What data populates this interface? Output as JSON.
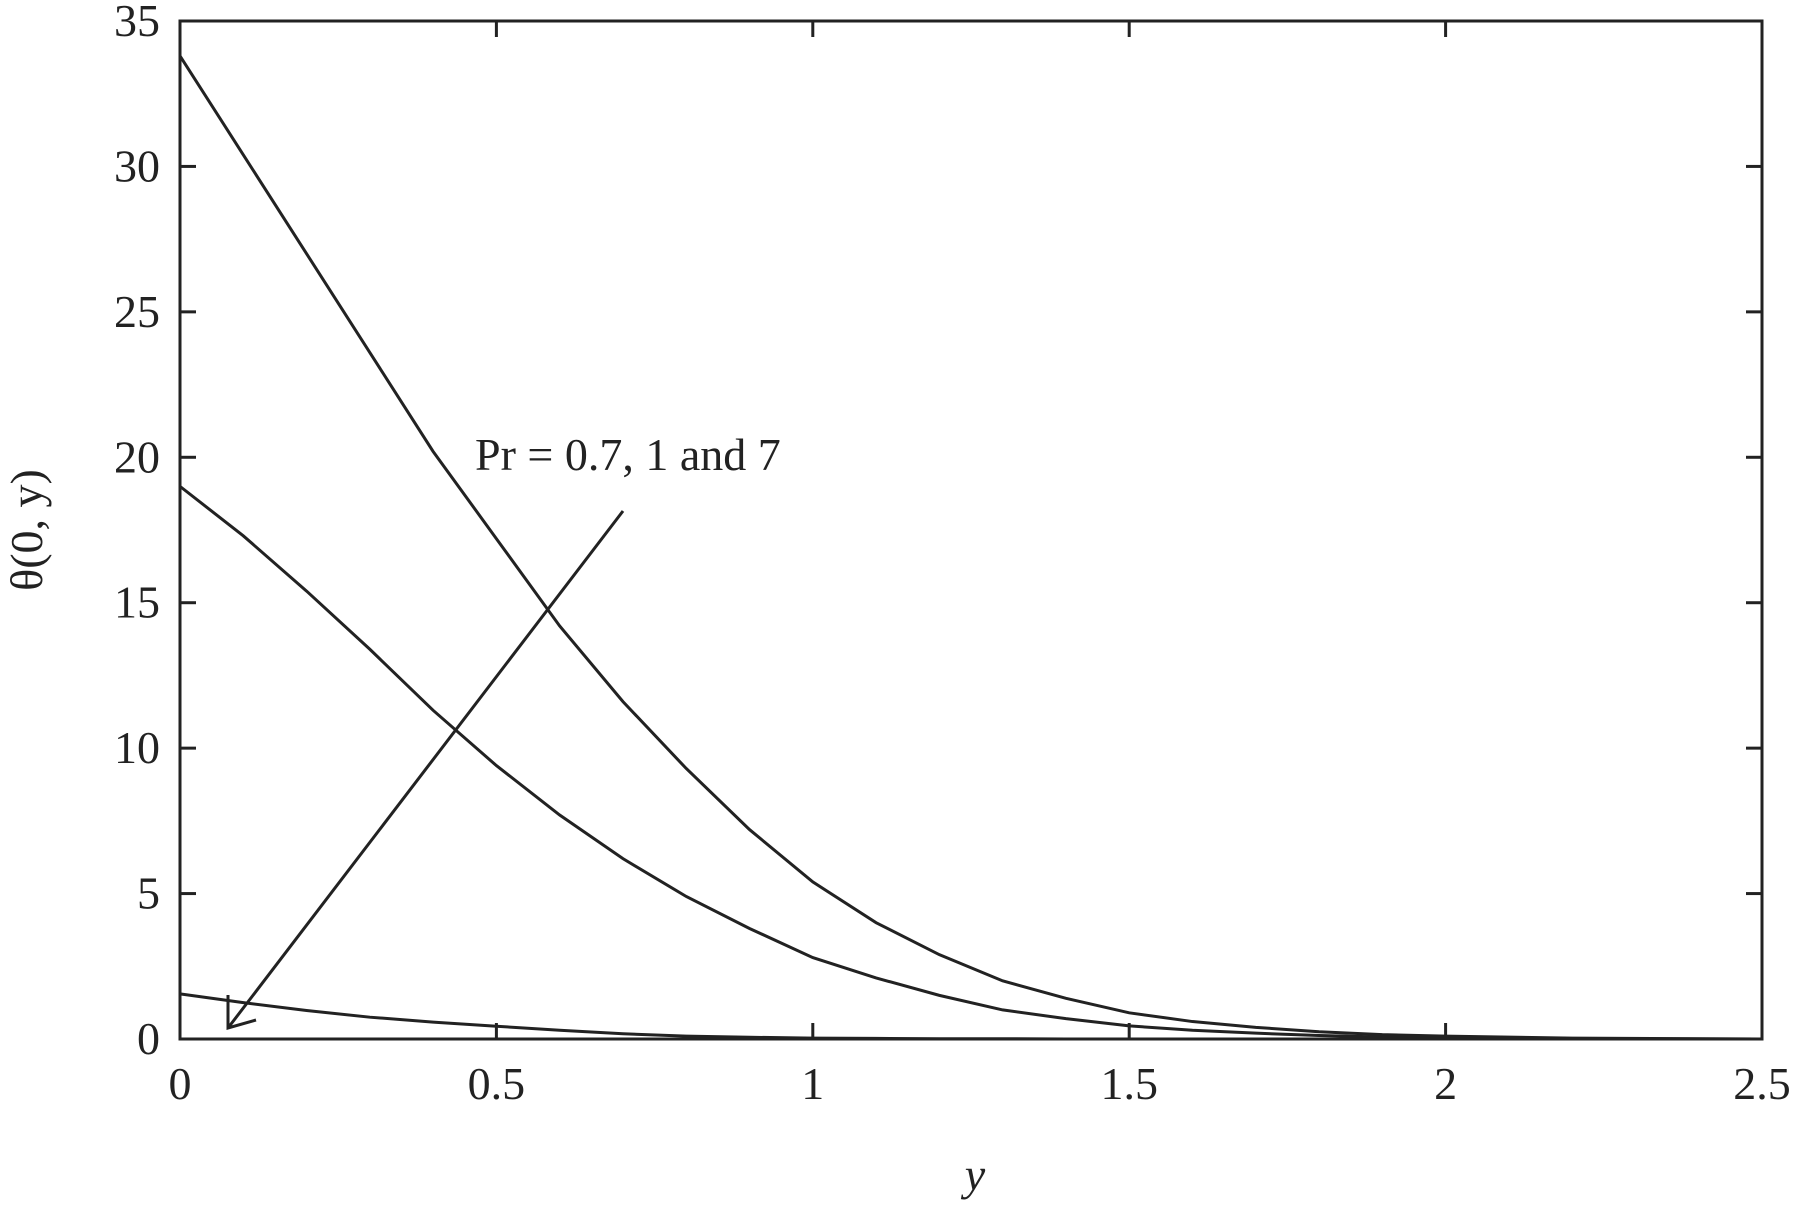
{
  "chart_data": {
    "type": "line",
    "xlabel": "y",
    "ylabel": "θ(0, y)",
    "annotation": "Pr = 0.7, 1 and 7",
    "x": [
      0,
      0.1,
      0.2,
      0.3,
      0.4,
      0.5,
      0.6,
      0.7,
      0.8,
      0.9,
      1.0,
      1.1,
      1.2,
      1.3,
      1.4,
      1.5,
      1.6,
      1.7,
      1.8,
      1.9,
      2.0,
      2.2,
      2.5
    ],
    "series": [
      {
        "color": "#222222",
        "values": [
          33.8,
          30.4,
          27.0,
          23.6,
          20.2,
          17.2,
          14.2,
          11.6,
          9.3,
          7.2,
          5.4,
          4.0,
          2.9,
          2.0,
          1.4,
          0.9,
          0.6,
          0.4,
          0.25,
          0.15,
          0.1,
          0.03,
          0
        ]
      },
      {
        "color": "#222222",
        "values": [
          19.0,
          17.3,
          15.4,
          13.4,
          11.3,
          9.4,
          7.7,
          6.2,
          4.9,
          3.8,
          2.8,
          2.1,
          1.5,
          1.0,
          0.7,
          0.45,
          0.3,
          0.2,
          0.12,
          0.07,
          0.04,
          0.01,
          0
        ]
      },
      {
        "color": "#222222",
        "values": [
          1.55,
          1.25,
          0.98,
          0.75,
          0.58,
          0.44,
          0.3,
          0.18,
          0.1,
          0.06,
          0.03,
          0.02,
          0.01,
          0.01,
          0,
          0,
          0,
          0,
          0,
          0,
          0,
          0,
          0
        ]
      }
    ],
    "xlim": [
      0,
      2.5
    ],
    "ylim": [
      0,
      35
    ],
    "xticks": [
      0,
      0.5,
      1,
      1.5,
      2,
      2.5
    ],
    "yticks": [
      0,
      5,
      10,
      15,
      20,
      25,
      30,
      35
    ],
    "grid": false
  }
}
